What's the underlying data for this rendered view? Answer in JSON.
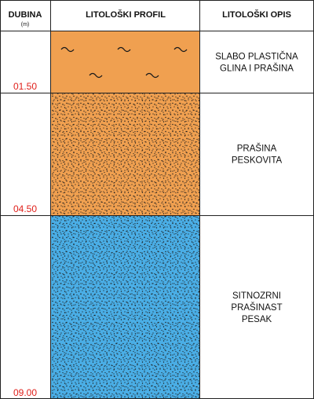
{
  "header": {
    "depth_title": "DUBINA",
    "depth_unit": "(m)",
    "profile_title": "LITOLOŠKI PROFIL",
    "description_title": "LITOLOŠKI OPIS"
  },
  "layers": [
    {
      "top_m": 0.0,
      "bottom_m": 1.5,
      "bottom_label": "01.50",
      "color": "#f0a050",
      "pattern": "clay-tilde",
      "description": [
        "SLABO PLASTIČNA",
        "GLINA I PRAŠINA"
      ]
    },
    {
      "top_m": 1.5,
      "bottom_m": 4.5,
      "bottom_label": "04.50",
      "color": "#f0a050",
      "pattern": "silt-dots",
      "description": [
        "PRAŠINA",
        "PESKOVITA"
      ]
    },
    {
      "top_m": 4.5,
      "bottom_m": 9.0,
      "bottom_label": "09.00",
      "color": "#4aaee6",
      "pattern": "sand-dots",
      "description": [
        "SITNOZRNI",
        "PRAŠINAST",
        "PESAK"
      ]
    }
  ],
  "colors": {
    "depth_label": "#e0201b",
    "grid": "#222222"
  }
}
